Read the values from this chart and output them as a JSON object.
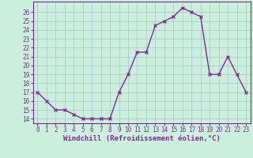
{
  "x": [
    0,
    1,
    2,
    3,
    4,
    5,
    6,
    7,
    8,
    9,
    10,
    11,
    12,
    13,
    14,
    15,
    16,
    17,
    18,
    19,
    20,
    21,
    22,
    23
  ],
  "y": [
    17,
    16,
    15,
    15,
    14.5,
    14,
    14,
    14,
    14,
    17,
    19,
    21.5,
    21.5,
    24.5,
    25,
    25.5,
    26.5,
    26,
    25.5,
    19,
    19,
    21,
    19,
    17
  ],
  "line_color": "#7b2d8b",
  "marker": "x",
  "bg_color": "#cceedd",
  "grid_color": "#aacccc",
  "xlabel": "Windchill (Refroidissement éolien,°C)",
  "ylim": [
    13.5,
    27.2
  ],
  "yticks": [
    14,
    15,
    16,
    17,
    18,
    19,
    20,
    21,
    22,
    23,
    24,
    25,
    26
  ],
  "xlim": [
    -0.5,
    23.5
  ],
  "xtick_labels": [
    "0",
    "1",
    "2",
    "3",
    "4",
    "5",
    "6",
    "7",
    "8",
    "9",
    "10",
    "11",
    "12",
    "13",
    "14",
    "15",
    "16",
    "17",
    "18",
    "19",
    "20",
    "21",
    "22",
    "23"
  ],
  "tick_color": "#7b2d8b",
  "label_color": "#7b2d8b",
  "line_width": 1.0,
  "marker_size": 3.5,
  "tick_fontsize": 5.5,
  "xlabel_fontsize": 6.5
}
